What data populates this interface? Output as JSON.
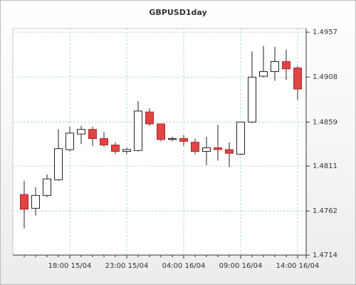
{
  "chart_data": {
    "type": "candlestick",
    "title": "GBPUSD1day",
    "categories": [
      null,
      null,
      null,
      null,
      "18:00 15/04",
      null,
      null,
      null,
      null,
      "23:00 15/04",
      null,
      null,
      null,
      null,
      "04:00 16/04",
      null,
      null,
      null,
      null,
      "09:00 16/04",
      null,
      null,
      null,
      null,
      "14:00 16/04"
    ],
    "open": [
      1.478,
      1.4765,
      1.4779,
      1.4796,
      1.4829,
      1.4846,
      1.4851,
      1.4841,
      1.4834,
      1.4827,
      1.4828,
      1.487,
      1.4857,
      1.484,
      1.4841,
      1.4837,
      1.4827,
      1.4831,
      1.4829,
      1.4824,
      1.4859,
      1.4909,
      1.4914,
      1.4925,
      1.4918
    ],
    "high": [
      1.4795,
      1.4788,
      1.4802,
      1.4851,
      1.4854,
      1.4855,
      1.4854,
      1.4848,
      1.4837,
      1.4831,
      1.4882,
      1.4874,
      1.4857,
      1.4843,
      1.4845,
      1.4841,
      1.4843,
      1.4856,
      1.4837,
      1.4859,
      1.4936,
      1.4942,
      1.4941,
      1.4938,
      1.492
    ],
    "low": [
      1.4743,
      1.4757,
      1.4777,
      1.4795,
      1.4827,
      1.4835,
      1.4833,
      1.4832,
      1.4824,
      1.4824,
      1.4827,
      1.4855,
      1.4838,
      1.4838,
      1.4833,
      1.4824,
      1.4812,
      1.4817,
      1.481,
      1.4823,
      1.4858,
      1.4908,
      1.4904,
      1.4905,
      1.4883
    ],
    "close": [
      1.4764,
      1.4779,
      1.4797,
      1.483,
      1.4847,
      1.4851,
      1.4841,
      1.4834,
      1.4827,
      1.4829,
      1.4871,
      1.4857,
      1.484,
      1.4841,
      1.4838,
      1.4827,
      1.4831,
      1.4829,
      1.4825,
      1.4859,
      1.4908,
      1.4914,
      1.4925,
      1.4917,
      1.4895
    ],
    "up_color": "#ffffff",
    "down_color": "#e04444",
    "ylim": [
      1.4714,
      1.4961
    ],
    "yticks": [
      1.4714,
      1.4762,
      1.4811,
      1.4859,
      1.4908,
      1.4957
    ],
    "grid": true
  }
}
